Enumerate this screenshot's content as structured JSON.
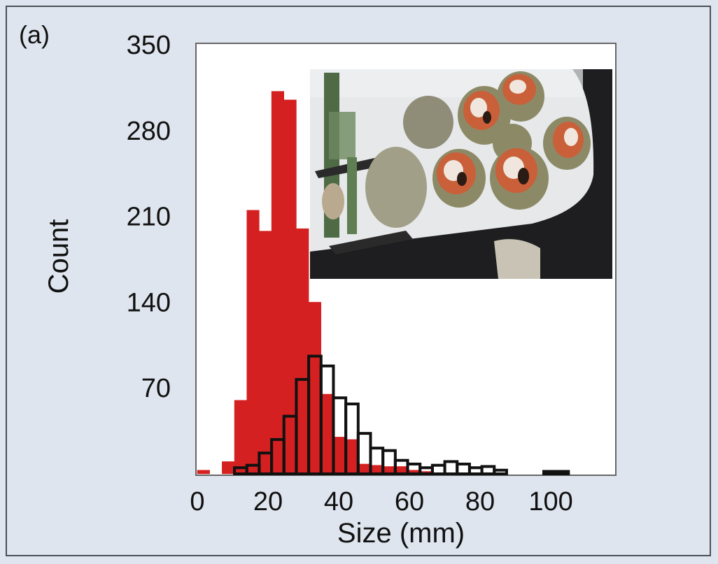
{
  "panel_label": "(a)",
  "chart_data": {
    "type": "bar",
    "xlabel": "Size (mm)",
    "ylabel": "Count",
    "xlim": [
      0,
      118
    ],
    "ylim": [
      0,
      350
    ],
    "xticks": [
      0,
      20,
      40,
      60,
      80,
      100
    ],
    "yticks": [
      70,
      140,
      210,
      280,
      350
    ],
    "bin_width": 3.5,
    "grid": false,
    "legend": "none",
    "series": [
      {
        "fill": "#d42020",
        "stroke": "#d42020",
        "bins": [
          {
            "x0": 0,
            "value": 3
          },
          {
            "x0": 7,
            "value": 10
          },
          {
            "x0": 10.5,
            "value": 60
          },
          {
            "x0": 14,
            "value": 215
          },
          {
            "x0": 17.5,
            "value": 198
          },
          {
            "x0": 21,
            "value": 312
          },
          {
            "x0": 24.5,
            "value": 305
          },
          {
            "x0": 28,
            "value": 200
          },
          {
            "x0": 31.5,
            "value": 140
          },
          {
            "x0": 35,
            "value": 65
          },
          {
            "x0": 38.5,
            "value": 30
          },
          {
            "x0": 42,
            "value": 28
          },
          {
            "x0": 45.5,
            "value": 8
          },
          {
            "x0": 49,
            "value": 7
          },
          {
            "x0": 52.5,
            "value": 6
          },
          {
            "x0": 56,
            "value": 6
          },
          {
            "x0": 59.5,
            "value": 3
          },
          {
            "x0": 63,
            "value": 2
          }
        ]
      },
      {
        "fill": "none",
        "stroke": "#111111",
        "bins": [
          {
            "x0": 10.5,
            "value": 5
          },
          {
            "x0": 14,
            "value": 7
          },
          {
            "x0": 17.5,
            "value": 17
          },
          {
            "x0": 21,
            "value": 28
          },
          {
            "x0": 24.5,
            "value": 47
          },
          {
            "x0": 28,
            "value": 77
          },
          {
            "x0": 31.5,
            "value": 96
          },
          {
            "x0": 35,
            "value": 88
          },
          {
            "x0": 38.5,
            "value": 62
          },
          {
            "x0": 42,
            "value": 57
          },
          {
            "x0": 45.5,
            "value": 33
          },
          {
            "x0": 49,
            "value": 21
          },
          {
            "x0": 52.5,
            "value": 19
          },
          {
            "x0": 56,
            "value": 11
          },
          {
            "x0": 59.5,
            "value": 8
          },
          {
            "x0": 63,
            "value": 5
          },
          {
            "x0": 66.5,
            "value": 7
          },
          {
            "x0": 70,
            "value": 10
          },
          {
            "x0": 73.5,
            "value": 8
          },
          {
            "x0": 77,
            "value": 5
          },
          {
            "x0": 80.5,
            "value": 6
          },
          {
            "x0": 84,
            "value": 3
          },
          {
            "x0": 98,
            "value": 2
          },
          {
            "x0": 101.5,
            "value": 2
          }
        ]
      }
    ]
  },
  "inset_photo": {
    "icon": "shellfish-photo-icon",
    "background": "#9da2a8",
    "tray": "#e6e8ea",
    "caliper": "#4f6b46"
  }
}
